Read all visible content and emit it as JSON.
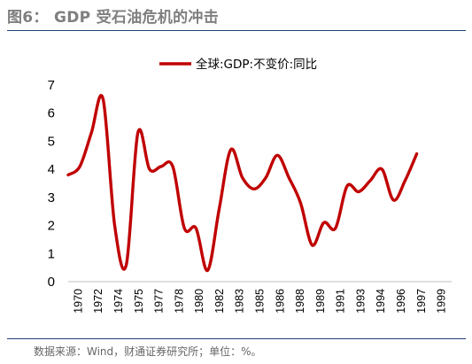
{
  "figure": {
    "title": "图6： GDP 受石油危机的冲击",
    "source": "数据来源：Wind，财通证券研究所；单位：%。"
  },
  "colors": {
    "series": "#c00000",
    "rule": "#1f3f74",
    "title": "#7f7f7f"
  },
  "chart_data": {
    "type": "line",
    "title": "",
    "xlabel": "",
    "ylabel": "",
    "ylim": [
      0,
      7
    ],
    "yticks": [
      "0",
      "1",
      "2",
      "3",
      "4",
      "5",
      "6",
      "7"
    ],
    "xtick_labels": [
      "1970",
      "1972",
      "1974",
      "1975",
      "1977",
      "1978",
      "1980",
      "1982",
      "1983",
      "1985",
      "1986",
      "1988",
      "1989",
      "1991",
      "1993",
      "1994",
      "1996",
      "1997",
      "1999"
    ],
    "xlim": [
      1970,
      2003
    ],
    "grid": false,
    "legend": "top-center",
    "series": [
      {
        "name": "全球:GDP:不变价:同比",
        "x": [
          1970,
          1971,
          1972,
          1973,
          1974,
          1975,
          1976,
          1977,
          1978,
          1979,
          1980,
          1981,
          1982,
          1983,
          1984,
          1985,
          1986,
          1987,
          1988,
          1989,
          1990,
          1991,
          1992,
          1993,
          1994,
          1995,
          1996,
          1997,
          1998,
          1999,
          2000
        ],
        "values": [
          3.8,
          4.1,
          5.3,
          6.5,
          2.0,
          0.6,
          5.3,
          4.0,
          4.1,
          4.1,
          1.9,
          1.9,
          0.4,
          2.6,
          4.7,
          3.7,
          3.3,
          3.7,
          4.5,
          3.7,
          2.8,
          1.3,
          2.1,
          1.9,
          3.4,
          3.2,
          3.6,
          4.0,
          2.9,
          3.6,
          4.55
        ]
      }
    ]
  }
}
